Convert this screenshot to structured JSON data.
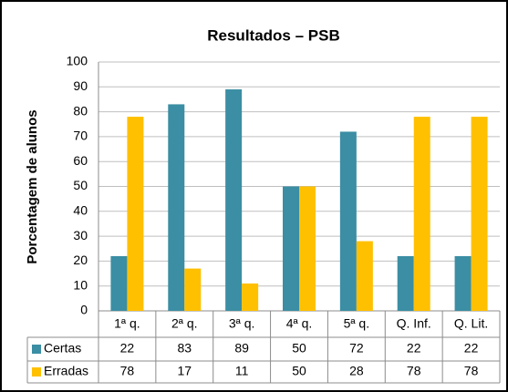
{
  "chart_data": {
    "type": "bar",
    "title": "Resultados – PSB",
    "y_label": "Porcentagem de alunos",
    "categories": [
      "1ª q.",
      "2ª q.",
      "3ª q.",
      "4ª q.",
      "5ª q.",
      "Q. Inf.",
      "Q. Lit."
    ],
    "series": [
      {
        "name": "Certas",
        "color": "#3b8ea3",
        "values": [
          22,
          83,
          89,
          50,
          72,
          22,
          22
        ]
      },
      {
        "name": "Erradas",
        "color": "#ffc000",
        "values": [
          78,
          17,
          11,
          50,
          28,
          78,
          78
        ]
      }
    ],
    "ylim": [
      0,
      100
    ],
    "yticks": [
      0,
      10,
      20,
      30,
      40,
      50,
      60,
      70,
      80,
      90,
      100
    ],
    "grid": true,
    "data_table": true
  }
}
